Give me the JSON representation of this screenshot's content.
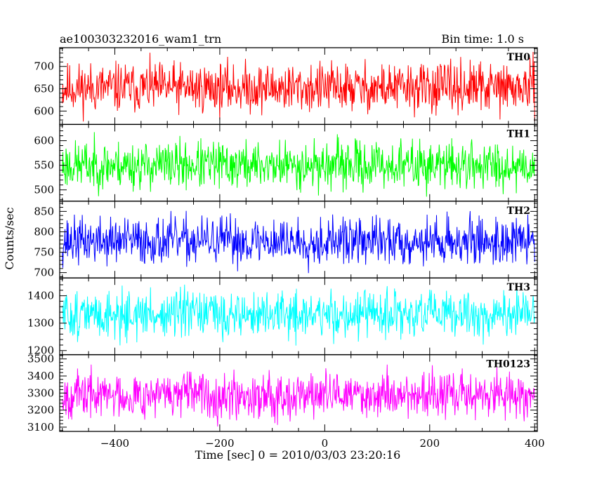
{
  "chart_data": {
    "type": "line",
    "title_left": "ae100303232016_wam1_trn",
    "title_right": "Bin time: 1.0 s",
    "xlabel": "Time [sec] 0 = 2010/03/03 23:20:16",
    "ylabel": "Counts/sec",
    "xlim": [
      -505,
      405
    ],
    "xticks": [
      -400,
      -200,
      0,
      200,
      400
    ],
    "x_start": -500,
    "x_end": 400,
    "x_step": 1,
    "panels": [
      {
        "name": "TH0",
        "color": "#ff0000",
        "ylim": [
          570,
          742
        ],
        "yticks": [
          600,
          650,
          700
        ],
        "mean": 652,
        "amplitude": 48,
        "seed": 11
      },
      {
        "name": "TH1",
        "color": "#00ff00",
        "ylim": [
          477,
          633
        ],
        "yticks": [
          500,
          550,
          600
        ],
        "mean": 550,
        "amplitude": 42,
        "seed": 23
      },
      {
        "name": "TH2",
        "color": "#0000ff",
        "ylim": [
          687,
          875
        ],
        "yticks": [
          700,
          750,
          800,
          850
        ],
        "mean": 777,
        "amplitude": 50,
        "seed": 37
      },
      {
        "name": "TH3",
        "color": "#00ffff",
        "ylim": [
          1185,
          1465
        ],
        "yticks": [
          1200,
          1300,
          1400
        ],
        "mean": 1330,
        "amplitude": 75,
        "seed": 51
      },
      {
        "name": "TH0123",
        "color": "#ff00ff",
        "ylim": [
          3075,
          3525
        ],
        "yticks": [
          3100,
          3200,
          3300,
          3400,
          3500
        ],
        "mean": 3290,
        "amplitude": 115,
        "seed": 67
      }
    ]
  }
}
